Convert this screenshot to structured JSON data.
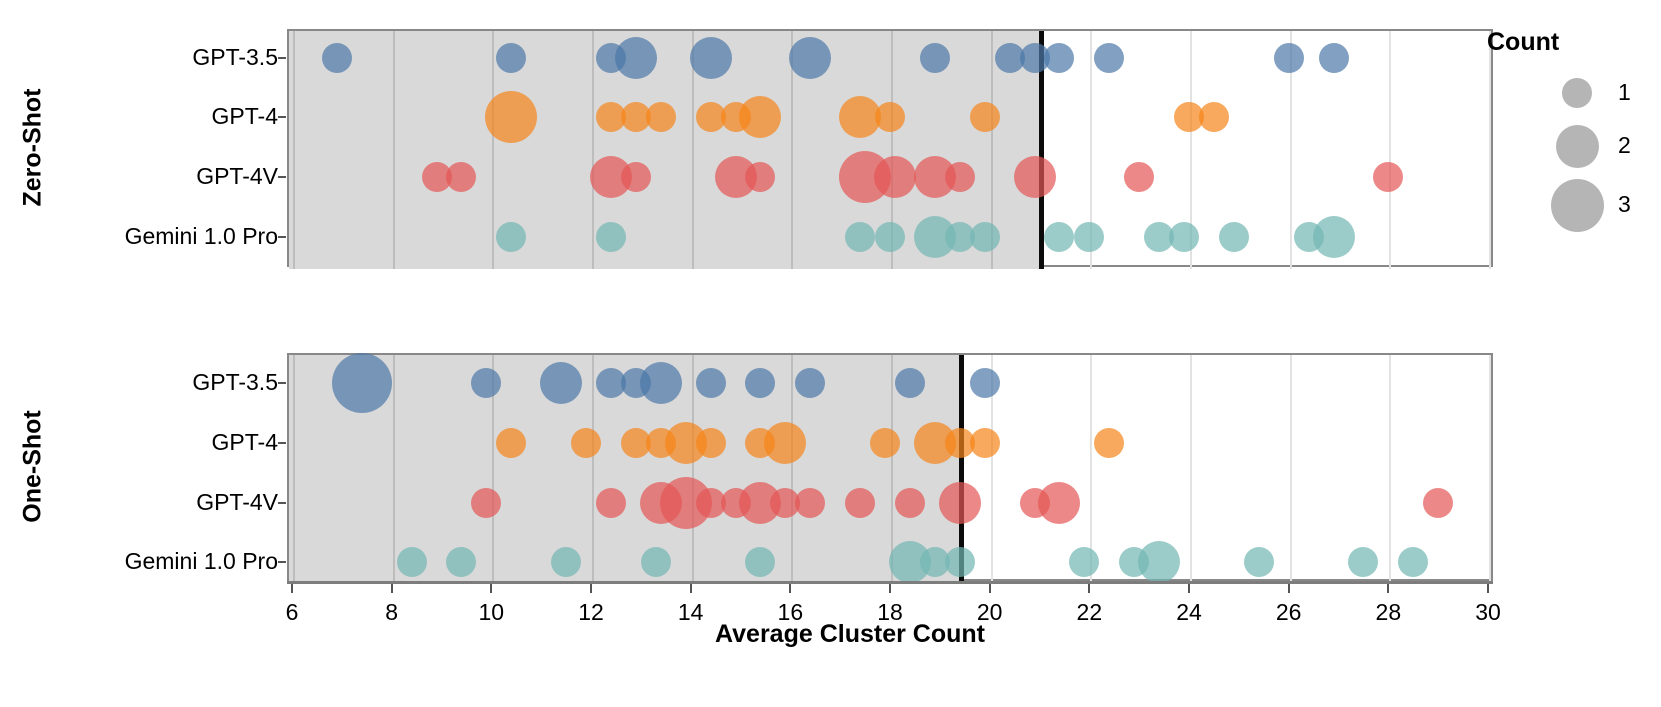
{
  "x_axis": {
    "title": "Average Cluster Count",
    "ticks": [
      6,
      8,
      10,
      12,
      14,
      16,
      18,
      20,
      22,
      24,
      26,
      28,
      30
    ],
    "min": 5.9,
    "max": 30.1
  },
  "legend": {
    "title": "Count",
    "items": [
      {
        "label": "1",
        "count": 1
      },
      {
        "label": "2",
        "count": 2
      },
      {
        "label": "3",
        "count": 3
      }
    ],
    "circle_color": "#b5b5b5"
  },
  "colors": {
    "gpt35": "#4c78a8",
    "gpt4": "#f58518",
    "gpt4v": "#e45756",
    "gemini": "#72b7b2",
    "band": "#d9d9d9",
    "rule": "#0b0b0b"
  },
  "chart_data": [
    {
      "type": "scatter",
      "panel_label": "Zero-Shot",
      "rule_x": 21.0,
      "categories": [
        "GPT-3.5",
        "GPT-4",
        "GPT-4V",
        "Gemini 1.0 Pro"
      ],
      "series": [
        {
          "name": "GPT-3.5",
          "color": "#4c78a8",
          "points": [
            [
              6.9,
              1
            ],
            [
              10.4,
              1
            ],
            [
              12.4,
              1
            ],
            [
              12.9,
              2
            ],
            [
              14.4,
              2
            ],
            [
              16.4,
              2
            ],
            [
              18.9,
              1
            ],
            [
              20.4,
              1
            ],
            [
              20.9,
              1
            ],
            [
              21.4,
              1
            ],
            [
              22.4,
              1
            ],
            [
              26.0,
              1
            ],
            [
              26.9,
              1
            ]
          ]
        },
        {
          "name": "GPT-4",
          "color": "#f58518",
          "points": [
            [
              10.4,
              3
            ],
            [
              12.4,
              1
            ],
            [
              12.9,
              1
            ],
            [
              13.4,
              1
            ],
            [
              14.4,
              1
            ],
            [
              14.9,
              1
            ],
            [
              15.4,
              2
            ],
            [
              17.4,
              2
            ],
            [
              18.0,
              1
            ],
            [
              19.9,
              1
            ],
            [
              24.0,
              1
            ],
            [
              24.5,
              1
            ]
          ]
        },
        {
          "name": "GPT-4V",
          "color": "#e45756",
          "points": [
            [
              8.9,
              1
            ],
            [
              9.4,
              1
            ],
            [
              12.4,
              2
            ],
            [
              12.9,
              1
            ],
            [
              14.9,
              2
            ],
            [
              15.4,
              1
            ],
            [
              17.5,
              3
            ],
            [
              18.1,
              2
            ],
            [
              18.9,
              2
            ],
            [
              19.4,
              1
            ],
            [
              20.9,
              2
            ],
            [
              23.0,
              1
            ],
            [
              28.0,
              1
            ]
          ]
        },
        {
          "name": "Gemini 1.0 Pro",
          "color": "#72b7b2",
          "points": [
            [
              10.4,
              1
            ],
            [
              12.4,
              1
            ],
            [
              17.4,
              1
            ],
            [
              18.0,
              1
            ],
            [
              18.9,
              2
            ],
            [
              19.4,
              1
            ],
            [
              19.9,
              1
            ],
            [
              21.4,
              1
            ],
            [
              22.0,
              1
            ],
            [
              23.4,
              1
            ],
            [
              23.9,
              1
            ],
            [
              24.9,
              1
            ],
            [
              26.4,
              1
            ],
            [
              26.9,
              2
            ]
          ]
        }
      ]
    },
    {
      "type": "scatter",
      "panel_label": "One-Shot",
      "rule_x": 19.4,
      "categories": [
        "GPT-3.5",
        "GPT-4",
        "GPT-4V",
        "Gemini 1.0 Pro"
      ],
      "series": [
        {
          "name": "GPT-3.5",
          "color": "#4c78a8",
          "points": [
            [
              7.4,
              4
            ],
            [
              9.9,
              1
            ],
            [
              11.4,
              2
            ],
            [
              12.4,
              1
            ],
            [
              12.9,
              1
            ],
            [
              13.4,
              2
            ],
            [
              14.4,
              1
            ],
            [
              15.4,
              1
            ],
            [
              16.4,
              1
            ],
            [
              18.4,
              1
            ],
            [
              19.9,
              1
            ]
          ]
        },
        {
          "name": "GPT-4",
          "color": "#f58518",
          "points": [
            [
              10.4,
              1
            ],
            [
              11.9,
              1
            ],
            [
              12.9,
              1
            ],
            [
              13.4,
              1
            ],
            [
              13.9,
              2
            ],
            [
              14.4,
              1
            ],
            [
              15.4,
              1
            ],
            [
              15.9,
              2
            ],
            [
              17.9,
              1
            ],
            [
              18.9,
              2
            ],
            [
              19.4,
              1
            ],
            [
              19.9,
              1
            ],
            [
              22.4,
              1
            ]
          ]
        },
        {
          "name": "GPT-4V",
          "color": "#e45756",
          "points": [
            [
              9.9,
              1
            ],
            [
              12.4,
              1
            ],
            [
              13.4,
              2
            ],
            [
              13.9,
              3
            ],
            [
              14.4,
              1
            ],
            [
              14.9,
              1
            ],
            [
              15.4,
              2
            ],
            [
              15.9,
              1
            ],
            [
              16.4,
              1
            ],
            [
              17.4,
              1
            ],
            [
              18.4,
              1
            ],
            [
              19.4,
              2
            ],
            [
              20.9,
              1
            ],
            [
              21.4,
              2
            ],
            [
              29.0,
              1
            ]
          ]
        },
        {
          "name": "Gemini 1.0 Pro",
          "color": "#72b7b2",
          "points": [
            [
              8.4,
              1
            ],
            [
              9.4,
              1
            ],
            [
              11.5,
              1
            ],
            [
              13.3,
              1
            ],
            [
              15.4,
              1
            ],
            [
              18.4,
              2
            ],
            [
              18.9,
              1
            ],
            [
              19.4,
              1
            ],
            [
              21.9,
              1
            ],
            [
              22.9,
              1
            ],
            [
              23.4,
              2
            ],
            [
              25.4,
              1
            ],
            [
              27.5,
              1
            ],
            [
              28.5,
              1
            ]
          ]
        }
      ]
    }
  ]
}
